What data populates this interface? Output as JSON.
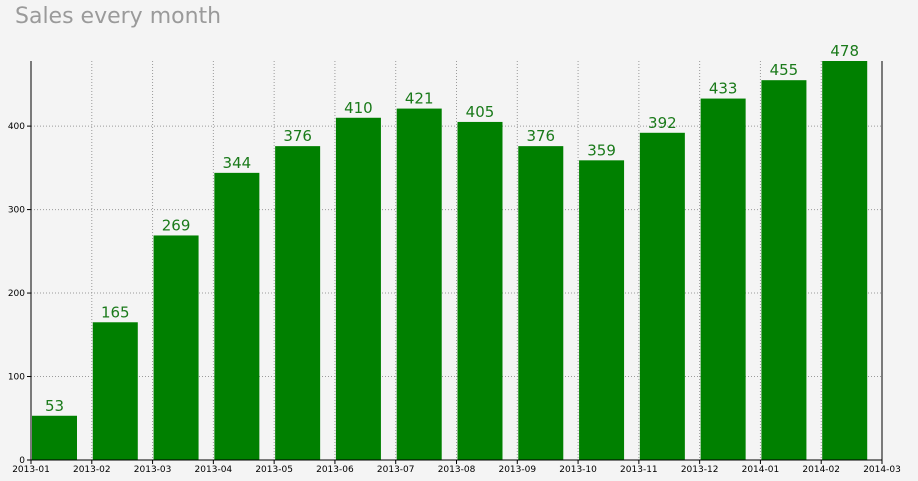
{
  "chart_data": {
    "type": "bar",
    "title": "Sales every month",
    "xlabel": "",
    "ylabel": "",
    "categories": [
      "2013-01",
      "2013-02",
      "2013-03",
      "2013-04",
      "2013-05",
      "2013-06",
      "2013-07",
      "2013-08",
      "2013-09",
      "2013-10",
      "2013-11",
      "2013-12",
      "2014-01",
      "2014-02"
    ],
    "x_tick_labels": [
      "2013-01",
      "2013-02",
      "2013-03",
      "2013-04",
      "2013-05",
      "2013-06",
      "2013-07",
      "2013-08",
      "2013-09",
      "2013-10",
      "2013-11",
      "2013-12",
      "2014-01",
      "2014-02",
      "2014-03"
    ],
    "values": [
      53,
      165,
      269,
      344,
      376,
      410,
      421,
      405,
      376,
      359,
      392,
      433,
      455,
      478
    ],
    "y_ticks": [
      0,
      100,
      200,
      300,
      400
    ],
    "ylim": [
      0,
      478
    ],
    "grid": true,
    "bar_color": "#008000",
    "label_color": "#1a7a1a",
    "background": "#f4f4f4"
  }
}
